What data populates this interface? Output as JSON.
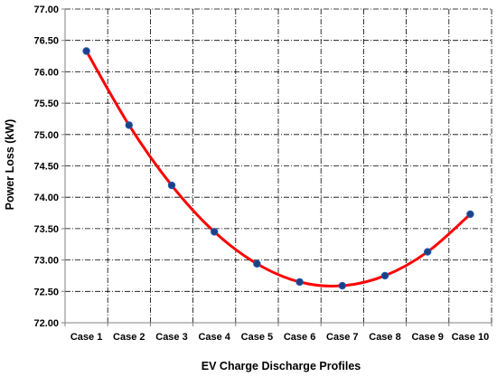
{
  "chart_data": {
    "type": "line",
    "title": "",
    "xlabel": "EV Charge Discharge Profiles",
    "ylabel": "Power Loss (kW)",
    "categories": [
      "Case 1",
      "Case 2",
      "Case 3",
      "Case 4",
      "Case 5",
      "Case 6",
      "Case 7",
      "Case 8",
      "Case 9",
      "Case 10"
    ],
    "values": [
      76.33,
      75.15,
      74.19,
      73.45,
      72.94,
      72.65,
      72.59,
      72.75,
      73.13,
      73.73
    ],
    "y_ticks": [
      "72.00",
      "72.50",
      "73.00",
      "73.50",
      "74.00",
      "74.50",
      "75.00",
      "75.50",
      "76.00",
      "76.50",
      "77.00"
    ],
    "ylim": [
      72.0,
      77.0
    ],
    "grid": true,
    "gridline_style": "dash-dot",
    "legend": "none",
    "smooth": true,
    "colors": {
      "line": "#ff0000",
      "marker_fill": "#1f3f7f",
      "marker_stroke": "#1a56b0",
      "grid": "#000000",
      "axis": "#808080"
    }
  }
}
